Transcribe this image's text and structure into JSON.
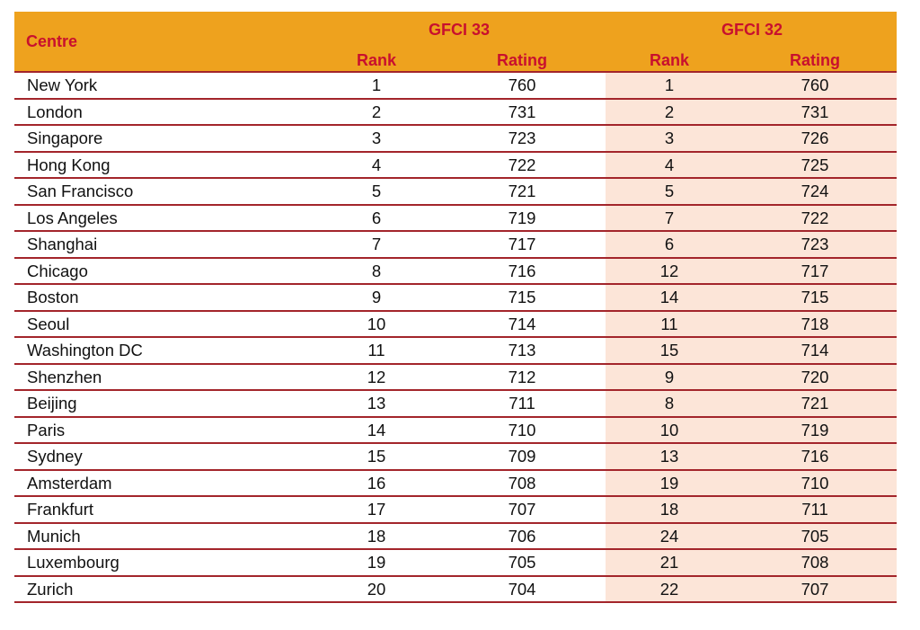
{
  "header": {
    "centre": "Centre",
    "group_current": "GFCI 33",
    "group_previous": "GFCI 32",
    "rank": "Rank",
    "rating": "Rating"
  },
  "rows": [
    {
      "centre": "New York",
      "rank33": "1",
      "rating33": "760",
      "rank32": "1",
      "rating32": "760"
    },
    {
      "centre": "London",
      "rank33": "2",
      "rating33": "731",
      "rank32": "2",
      "rating32": "731"
    },
    {
      "centre": "Singapore",
      "rank33": "3",
      "rating33": "723",
      "rank32": "3",
      "rating32": "726"
    },
    {
      "centre": "Hong Kong",
      "rank33": "4",
      "rating33": "722",
      "rank32": "4",
      "rating32": "725"
    },
    {
      "centre": "San Francisco",
      "rank33": "5",
      "rating33": "721",
      "rank32": "5",
      "rating32": "724"
    },
    {
      "centre": "Los Angeles",
      "rank33": "6",
      "rating33": "719",
      "rank32": "7",
      "rating32": "722"
    },
    {
      "centre": "Shanghai",
      "rank33": "7",
      "rating33": "717",
      "rank32": "6",
      "rating32": "723"
    },
    {
      "centre": "Chicago",
      "rank33": "8",
      "rating33": "716",
      "rank32": "12",
      "rating32": "717"
    },
    {
      "centre": "Boston",
      "rank33": "9",
      "rating33": "715",
      "rank32": "14",
      "rating32": "715"
    },
    {
      "centre": "Seoul",
      "rank33": "10",
      "rating33": "714",
      "rank32": "11",
      "rating32": "718"
    },
    {
      "centre": "Washington DC",
      "rank33": "11",
      "rating33": "713",
      "rank32": "15",
      "rating32": "714"
    },
    {
      "centre": "Shenzhen",
      "rank33": "12",
      "rating33": "712",
      "rank32": "9",
      "rating32": "720"
    },
    {
      "centre": "Beijing",
      "rank33": "13",
      "rating33": "711",
      "rank32": "8",
      "rating32": "721"
    },
    {
      "centre": "Paris",
      "rank33": "14",
      "rating33": "710",
      "rank32": "10",
      "rating32": "719"
    },
    {
      "centre": "Sydney",
      "rank33": "15",
      "rating33": "709",
      "rank32": "13",
      "rating32": "716"
    },
    {
      "centre": "Amsterdam",
      "rank33": "16",
      "rating33": "708",
      "rank32": "19",
      "rating32": "710"
    },
    {
      "centre": "Frankfurt",
      "rank33": "17",
      "rating33": "707",
      "rank32": "18",
      "rating32": "711"
    },
    {
      "centre": "Munich",
      "rank33": "18",
      "rating33": "706",
      "rank32": "24",
      "rating32": "705"
    },
    {
      "centre": "Luxembourg",
      "rank33": "19",
      "rating33": "705",
      "rank32": "21",
      "rating32": "708"
    },
    {
      "centre": "Zurich",
      "rank33": "20",
      "rating33": "704",
      "rank32": "22",
      "rating32": "707"
    }
  ],
  "colors": {
    "header_bg": "#eea21e",
    "header_text": "#c8102e",
    "rule": "#a3252b",
    "shade": "#fce5d8"
  }
}
